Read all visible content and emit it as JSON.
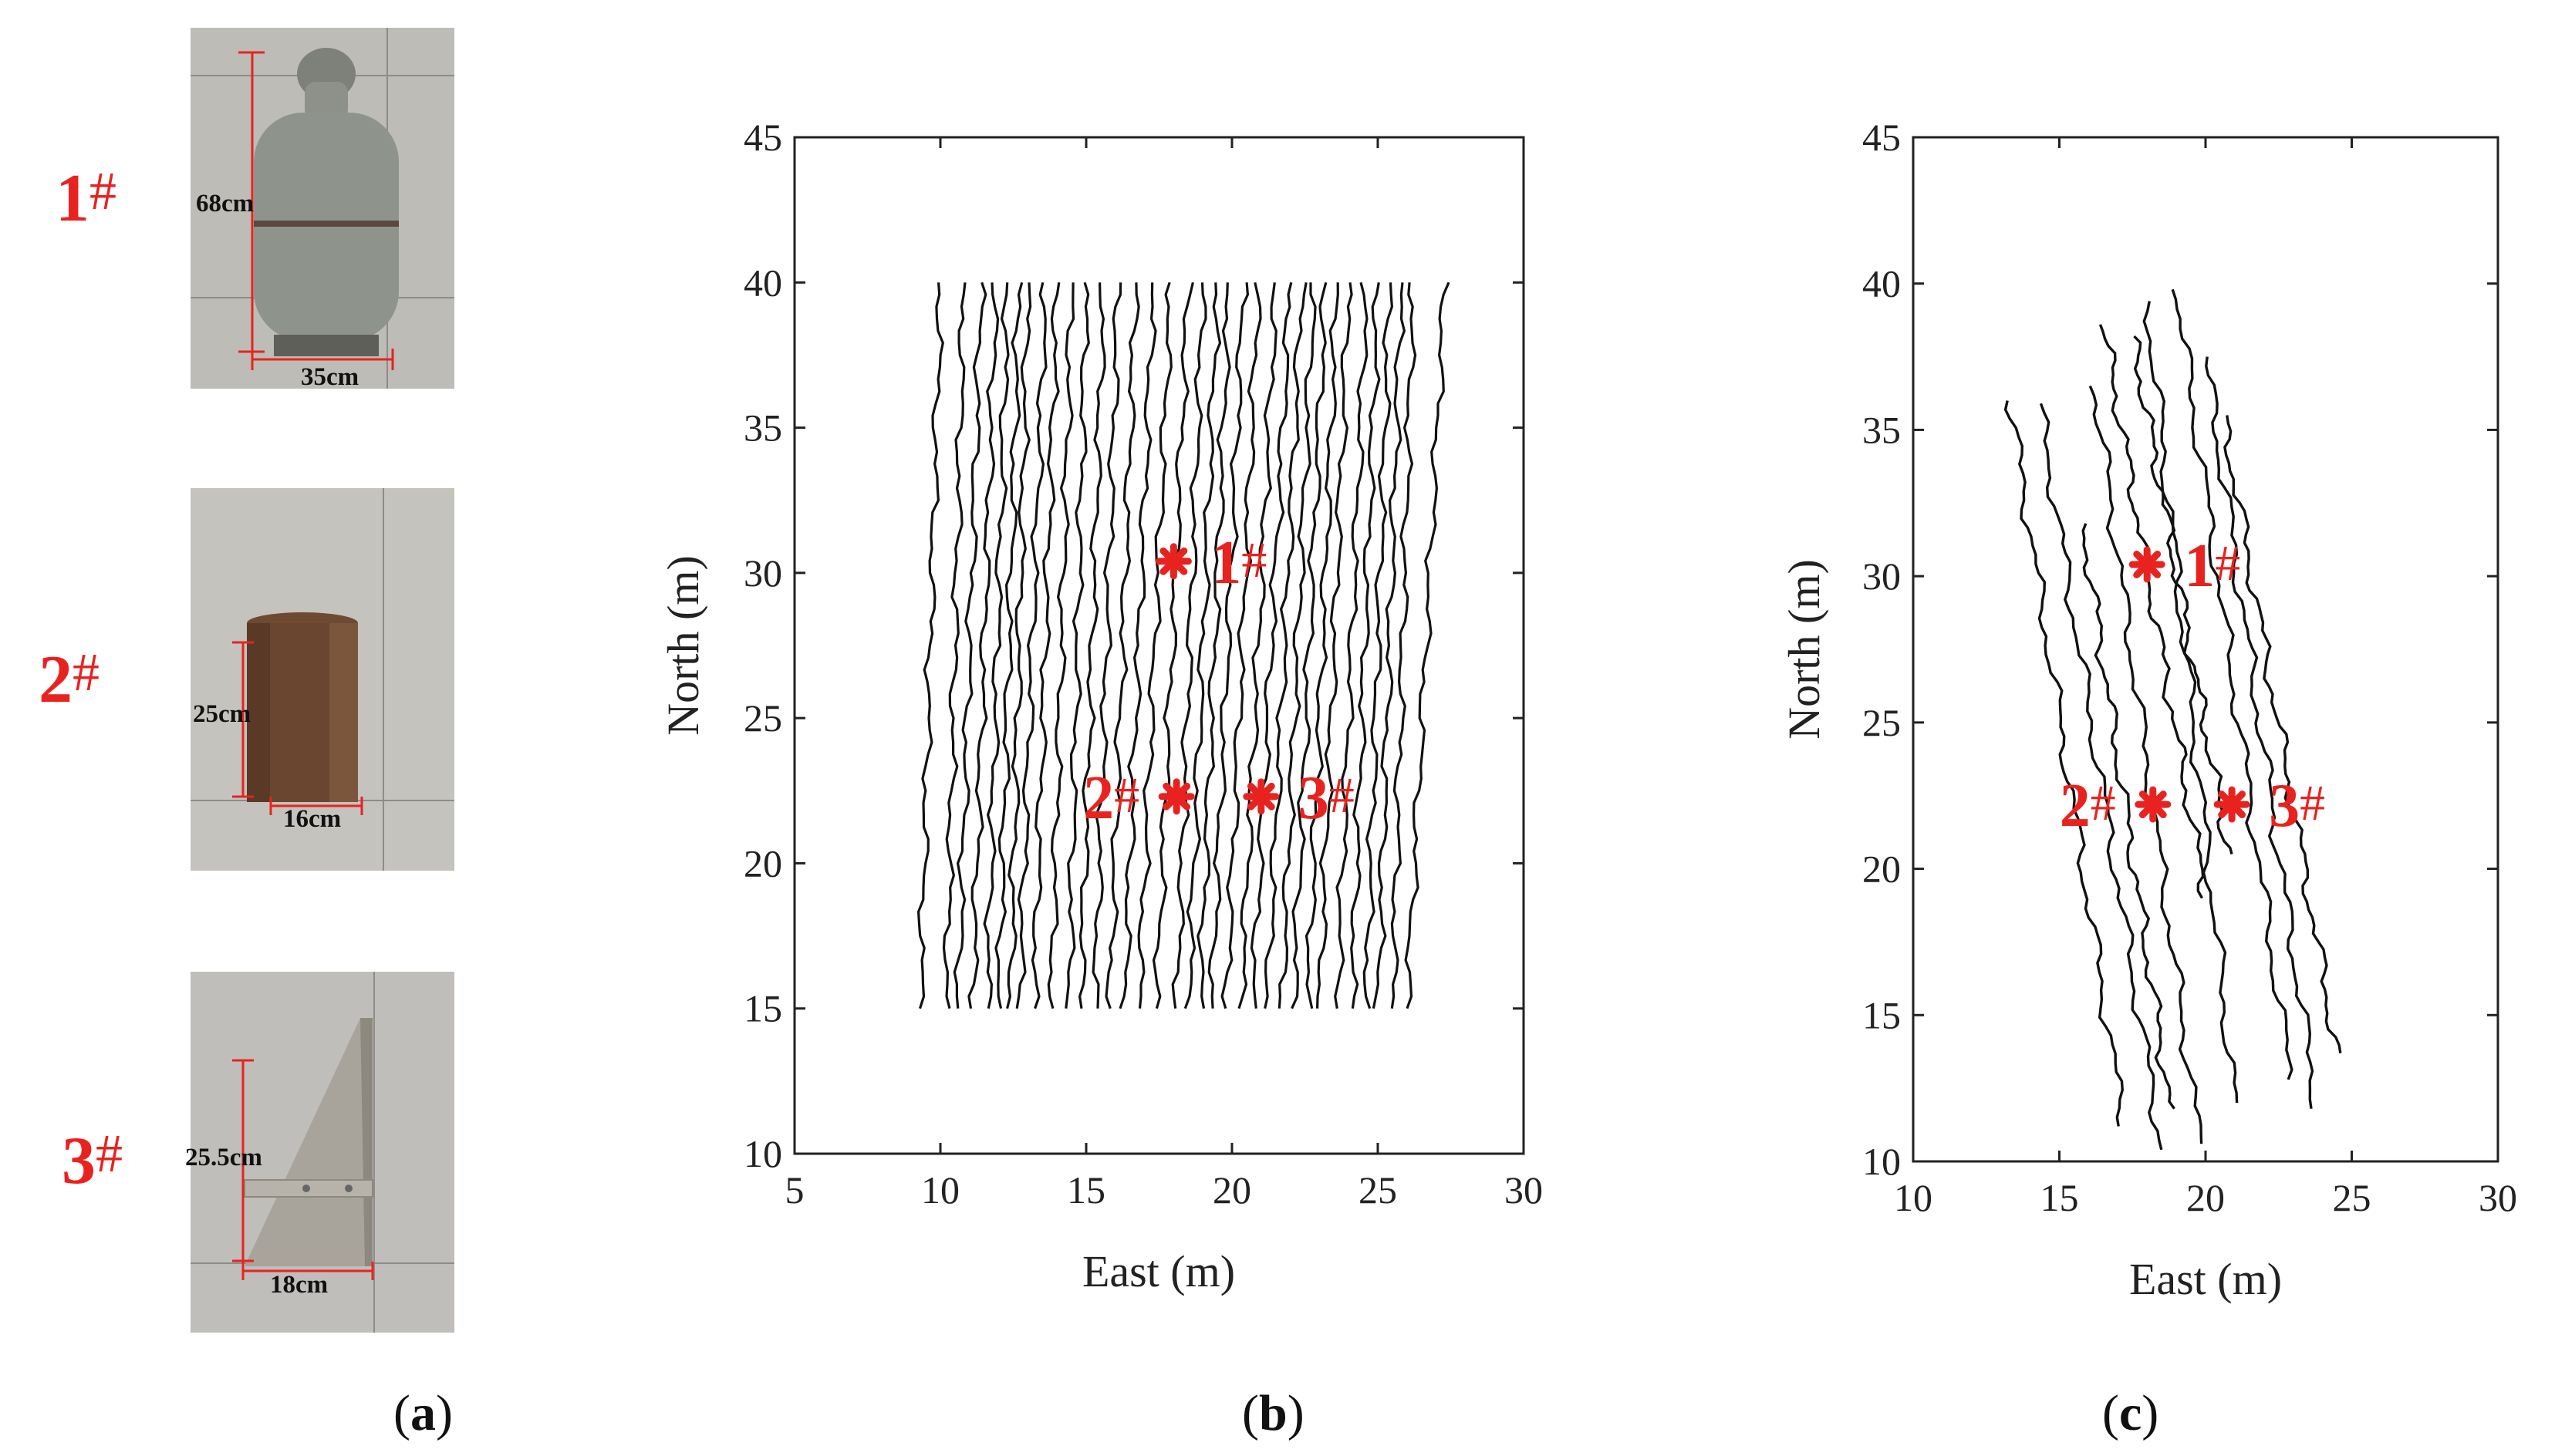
{
  "objects": [
    {
      "id": "1",
      "hash": "#",
      "width": "35cm",
      "height": "68cm"
    },
    {
      "id": "2",
      "hash": "#",
      "width": "16cm",
      "height": "25cm"
    },
    {
      "id": "3",
      "hash": "#",
      "width": "18cm",
      "height": "25.5cm"
    }
  ],
  "panels": {
    "a": {
      "open": "(",
      "letter": "a",
      "close": ")"
    },
    "b": {
      "open": "(",
      "letter": "b",
      "close": ")"
    },
    "c": {
      "open": "(",
      "letter": "c",
      "close": ")"
    }
  },
  "colors": {
    "marker": "#e8231f",
    "line": "#111111"
  },
  "chart_data": [
    {
      "type": "line",
      "panel": "b",
      "xlabel": "East (m)",
      "ylabel": "North (m)",
      "xlim": [
        5,
        30
      ],
      "ylim": [
        10,
        45
      ],
      "xticks": [
        5,
        10,
        15,
        20,
        25,
        30
      ],
      "yticks": [
        10,
        15,
        20,
        25,
        30,
        35,
        40,
        45
      ],
      "grid": false,
      "track_pattern": "parallel survey lines from North 15 m to 40 m",
      "tracks_start_east": [
        9.3,
        10.2,
        10.6,
        11.1,
        11.6,
        12.0,
        12.4,
        12.7,
        13.2,
        13.8,
        14.4,
        14.8,
        15.3,
        15.8,
        16.3,
        16.8,
        17.4,
        18.1,
        18.5,
        18.9,
        19.3,
        19.8,
        20.3,
        20.7,
        21.2,
        21.7,
        22.1,
        22.6,
        23.0,
        23.6,
        24.1,
        24.6,
        25.0,
        25.5,
        26.0
      ],
      "tracks_end_east": [
        10.0,
        10.8,
        11.4,
        11.9,
        12.3,
        12.7,
        13.0,
        13.6,
        14.0,
        14.5,
        15.0,
        15.6,
        16.1,
        16.7,
        17.3,
        17.9,
        18.5,
        19.0,
        19.5,
        19.9,
        20.4,
        20.9,
        21.5,
        22.0,
        22.4,
        22.8,
        23.2,
        23.6,
        24.0,
        24.6,
        25.0,
        25.4,
        25.8,
        26.2,
        27.3
      ],
      "track_north_range": [
        15,
        40
      ],
      "annotations": [
        {
          "id": "1",
          "hash": "#",
          "x": 18.0,
          "y": 30.4,
          "label_side": "right"
        },
        {
          "id": "2",
          "hash": "#",
          "x": 18.1,
          "y": 22.3,
          "label_side": "left"
        },
        {
          "id": "3",
          "hash": "#",
          "x": 21.0,
          "y": 22.3,
          "label_side": "right"
        }
      ]
    },
    {
      "type": "line",
      "panel": "c",
      "xlabel": "East (m)",
      "ylabel": "North (m)",
      "xlim": [
        10,
        30
      ],
      "ylim": [
        10,
        45
      ],
      "xticks": [
        10,
        15,
        20,
        25,
        30
      ],
      "yticks": [
        10,
        15,
        20,
        25,
        30,
        35,
        40,
        45
      ],
      "grid": false,
      "tracks": [
        {
          "start": [
            13.3,
            36.0
          ],
          "end": [
            17.2,
            11.2
          ]
        },
        {
          "start": [
            14.3,
            35.9
          ],
          "end": [
            18.5,
            10.4
          ]
        },
        {
          "start": [
            15.8,
            31.8
          ],
          "end": [
            18.8,
            11.8
          ]
        },
        {
          "start": [
            16.2,
            36.5
          ],
          "end": [
            19.8,
            10.6
          ]
        },
        {
          "start": [
            16.5,
            38.6
          ],
          "end": [
            20.0,
            19.0
          ]
        },
        {
          "start": [
            17.5,
            38.2
          ],
          "end": [
            20.8,
            20.5
          ]
        },
        {
          "start": [
            18.0,
            39.4
          ],
          "end": [
            21.0,
            12.0
          ]
        },
        {
          "start": [
            19.0,
            39.8
          ],
          "end": [
            22.9,
            12.8
          ]
        },
        {
          "start": [
            20.0,
            37.5
          ],
          "end": [
            23.8,
            11.8
          ]
        },
        {
          "start": [
            20.6,
            35.5
          ],
          "end": [
            24.5,
            13.7
          ]
        }
      ],
      "annotations": [
        {
          "id": "1",
          "hash": "#",
          "x": 18.0,
          "y": 30.4,
          "label_side": "right"
        },
        {
          "id": "2",
          "hash": "#",
          "x": 18.2,
          "y": 22.2,
          "label_side": "left"
        },
        {
          "id": "3",
          "hash": "#",
          "x": 20.9,
          "y": 22.2,
          "label_side": "right"
        }
      ]
    }
  ]
}
